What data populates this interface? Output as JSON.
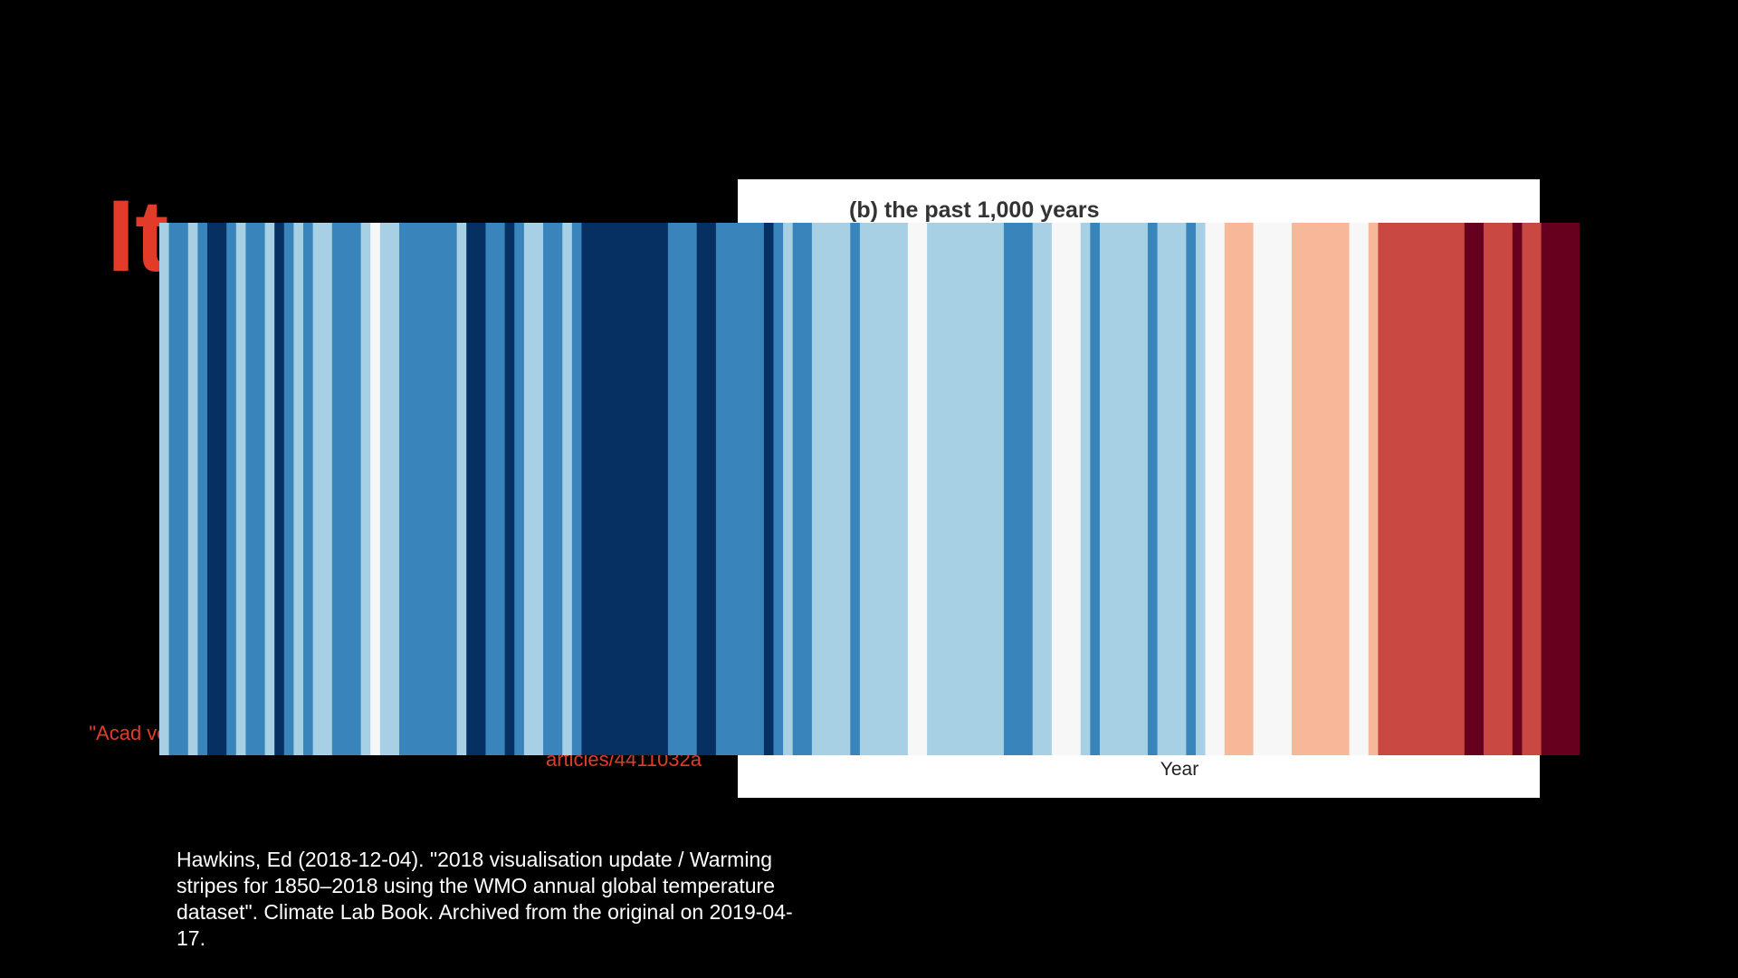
{
  "slide": {
    "headline": "It",
    "red_citation": "\"Acad volume 441, pages 1032–1033 (2006) https://www.nature.com/ articles/4411032a",
    "source_citation": "Hawkins, Ed (2018-12-04). \"2018 visualisation update / Warming stripes for 1850–2018 using the WMO annual global temperature dataset\". Climate Lab Book. Archived from the original on 2019-04-17."
  },
  "colors": {
    "background": "#000000",
    "headline": "#e23b2a",
    "citation_red": "#e23b2a",
    "panel": "#ffffff"
  },
  "chart_data": {
    "type": "heatmap",
    "title": "(b) the past 1,000 years",
    "xlabel": "Year",
    "ylabel": "",
    "legend": "none",
    "grid": false,
    "colormap": "RdBu_r",
    "value_range": [
      -3,
      3
    ],
    "values": [
      -1,
      -2,
      -2,
      -1,
      -2,
      -3,
      -3,
      -2,
      -1,
      -2,
      -2,
      -1,
      -3,
      -2,
      -1,
      -2,
      -1,
      -1,
      -2,
      -2,
      -2,
      -1,
      0,
      -1,
      -1,
      -2,
      -2,
      -2,
      -2,
      -2,
      -2,
      -1,
      -3,
      -3,
      -2,
      -2,
      -3,
      -2,
      -1,
      -1,
      -2,
      -2,
      -1,
      -2,
      -3,
      -3,
      -3,
      -3,
      -3,
      -3,
      -3,
      -3,
      -3,
      -2,
      -2,
      -2,
      -3,
      -3,
      -2,
      -2,
      -2,
      -2,
      -2,
      -3,
      -2,
      -1,
      -2,
      -2,
      -1,
      -1,
      -1,
      -1,
      -2,
      -1,
      -1,
      -1,
      -1,
      -1,
      0,
      0,
      -1,
      -1,
      -1,
      -1,
      -1,
      -1,
      -1,
      -1,
      -2,
      -2,
      -2,
      -1,
      -1,
      0,
      0,
      0,
      -1,
      -2,
      -1,
      -1,
      -1,
      -1,
      -1,
      -2,
      -1,
      -1,
      -1,
      -2,
      -1,
      0,
      0,
      1,
      1,
      1,
      0,
      0,
      0,
      0,
      1,
      1,
      1,
      1,
      1,
      1,
      0,
      0,
      1,
      2,
      2,
      2,
      2,
      2,
      2,
      2,
      2,
      2,
      3,
      3,
      2,
      2,
      2,
      3,
      2,
      2,
      3,
      3,
      3,
      3
    ]
  }
}
